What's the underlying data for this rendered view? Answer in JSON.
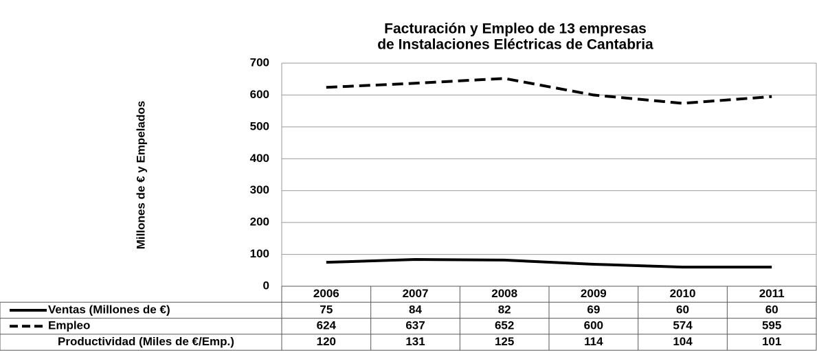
{
  "chart_data": {
    "type": "line",
    "title": [
      "Facturación y Empleo de 13 empresas",
      "de Instalaciones Eléctricas de Cantabria"
    ],
    "y_label": "Millones de €  y  Empelados",
    "categories": [
      "2006",
      "2007",
      "2008",
      "2009",
      "2010",
      "2011"
    ],
    "series": [
      {
        "name": "Ventas (Millones de €)",
        "color": "#000000",
        "style": "solid",
        "values": [
          75,
          84,
          82,
          69,
          60,
          60
        ]
      },
      {
        "name": "Empleo",
        "color": "#000000",
        "style": "dashed",
        "values": [
          624,
          637,
          652,
          600,
          574,
          595
        ]
      },
      {
        "name": "Productividad (Miles de €/Emp.)",
        "values": [
          120,
          131,
          125,
          114,
          104,
          101
        ]
      }
    ],
    "ylim": [
      0,
      700
    ],
    "yticks": [
      0,
      100,
      200,
      300,
      400,
      500,
      600,
      700
    ],
    "grid": true
  }
}
